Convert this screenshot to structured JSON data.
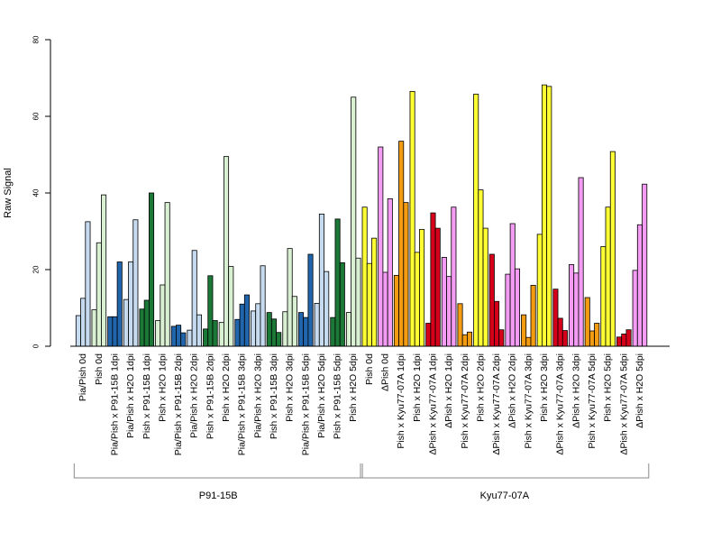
{
  "chart_data": {
    "type": "bar",
    "ylabel": "Raw Signal",
    "ylim": [
      0,
      80
    ],
    "yticks": [
      0,
      20,
      40,
      60,
      80
    ],
    "colors": {
      "lightblue": "#c6dbef",
      "blue": "#2166ac",
      "green": "#1b7837",
      "lightgreen": "#d9f0d3",
      "yellow": "#ffff33",
      "pink": "#f49cf4",
      "orange": "#f39c12",
      "red": "#d7001a"
    },
    "categories": [
      {
        "label": "Pia/Pish 0d",
        "color": "lightblue",
        "values": [
          8,
          12.5,
          32.5
        ]
      },
      {
        "label": "Pish 0d",
        "color": "lightgreen",
        "values": [
          9.5,
          27,
          39.5
        ]
      },
      {
        "label": "Pia/Pish x P91-15B 1dpi",
        "color": "blue",
        "values": [
          7.7,
          7.7,
          22
        ]
      },
      {
        "label": "Pia/Pish x H2O 1dpi",
        "color": "lightblue",
        "values": [
          12.2,
          22,
          33
        ]
      },
      {
        "label": "Pish x P91-15B 1dpi",
        "color": "green",
        "values": [
          9.7,
          12,
          40
        ]
      },
      {
        "label": "Pish x H2O 1dpi",
        "color": "lightgreen",
        "values": [
          6.7,
          16,
          37.5
        ]
      },
      {
        "label": "Pia/Pish x P91-15B 2dpi",
        "color": "blue",
        "values": [
          5.2,
          5.5,
          3.5
        ]
      },
      {
        "label": "Pia/Pish x H2O 2dpi",
        "color": "lightblue",
        "values": [
          4.2,
          25,
          8.2
        ]
      },
      {
        "label": "Pish x P91-15B 2dpi",
        "color": "green",
        "values": [
          4.5,
          18.4,
          6.7
        ]
      },
      {
        "label": "Pish x H2O 2dpi",
        "color": "lightgreen",
        "values": [
          6.2,
          49.5,
          20.8
        ]
      },
      {
        "label": "Pia/Pish x P91-15B 3dpi",
        "color": "blue",
        "values": [
          7,
          11,
          13.4
        ]
      },
      {
        "label": "Pia/Pish x H2O 3dpi",
        "color": "lightblue",
        "values": [
          9.2,
          11.1,
          21
        ]
      },
      {
        "label": "Pish x P91-15B 3dpi",
        "color": "green",
        "values": [
          8.8,
          7.1,
          3.6
        ]
      },
      {
        "label": "Pish x H2O 3dpi",
        "color": "lightgreen",
        "values": [
          9,
          25.5,
          13
        ]
      },
      {
        "label": "Pia/Pish x P91-15B 5dpi",
        "color": "blue",
        "values": [
          8.8,
          7.5,
          24
        ]
      },
      {
        "label": "Pia/Pish x H2O 5dpi",
        "color": "lightblue",
        "values": [
          11.2,
          34.5,
          19.5
        ]
      },
      {
        "label": "Pish x P91-15B 5dpi",
        "color": "green",
        "values": [
          7.5,
          33.2,
          21.8
        ]
      },
      {
        "label": "Pish x H2O 5dpi",
        "color": "lightgreen",
        "values": [
          8.8,
          65,
          23
        ]
      },
      {
        "label": "Pish 0d",
        "color": "yellow",
        "values": [
          36.3,
          21.6,
          28.2
        ]
      },
      {
        "label": "ΔPish 0d",
        "color": "pink",
        "values": [
          52,
          19.3,
          38.5
        ]
      },
      {
        "label": "Pish x Kyu77-07A 1dpi",
        "color": "orange",
        "values": [
          18.5,
          53.5,
          37.5
        ]
      },
      {
        "label": "Pish x H2O 1dpi",
        "color": "yellow",
        "values": [
          66.5,
          24.5,
          30.5
        ]
      },
      {
        "label": "ΔPish x Kyu77-07A 1dpi",
        "color": "red",
        "values": [
          6,
          34.8,
          30.8
        ]
      },
      {
        "label": "ΔPish x H2O 1dpi",
        "color": "pink",
        "values": [
          23.2,
          18.2,
          36.3
        ]
      },
      {
        "label": "Pish x Kyu77-07A 2dpi",
        "color": "orange",
        "values": [
          11.1,
          3,
          3.7
        ]
      },
      {
        "label": "Pish x H2O 2dpi",
        "color": "yellow",
        "values": [
          65.8,
          40.8,
          30.8
        ]
      },
      {
        "label": "ΔPish x Kyu77-07A 2dpi",
        "color": "red",
        "values": [
          24,
          11.7,
          4.3
        ]
      },
      {
        "label": "ΔPish x H2O 2dpi",
        "color": "pink",
        "values": [
          18.8,
          32,
          20.2
        ]
      },
      {
        "label": "Pish x Kyu77-07A 3dpi",
        "color": "orange",
        "values": [
          8.2,
          2.3,
          15.9
        ]
      },
      {
        "label": "Pish x H2O 3dpi",
        "color": "yellow",
        "values": [
          29.2,
          68.2,
          67.8
        ]
      },
      {
        "label": "ΔPish x Kyu77-07A 3dpi",
        "color": "red",
        "values": [
          14.9,
          7.3,
          4.1
        ]
      },
      {
        "label": "ΔPish x H2O 3dpi",
        "color": "pink",
        "values": [
          21.3,
          19.1,
          44
        ]
      },
      {
        "label": "Pish x Kyu77-07A 5dpi",
        "color": "orange",
        "values": [
          12.7,
          4,
          6
        ]
      },
      {
        "label": "Pish x H2O 5dpi",
        "color": "yellow",
        "values": [
          26,
          36.3,
          50.8
        ]
      },
      {
        "label": "ΔPish x Kyu77-07A 5dpi",
        "color": "red",
        "values": [
          2.4,
          3.2,
          4.3
        ]
      },
      {
        "label": "ΔPish x H2O 5dpi",
        "color": "pink",
        "values": [
          19.8,
          31.7,
          42.3
        ]
      }
    ],
    "groups": [
      {
        "label": "P91-15B",
        "first": 0,
        "last": 17
      },
      {
        "label": "Kyu77-07A",
        "first": 18,
        "last": 35
      }
    ]
  }
}
